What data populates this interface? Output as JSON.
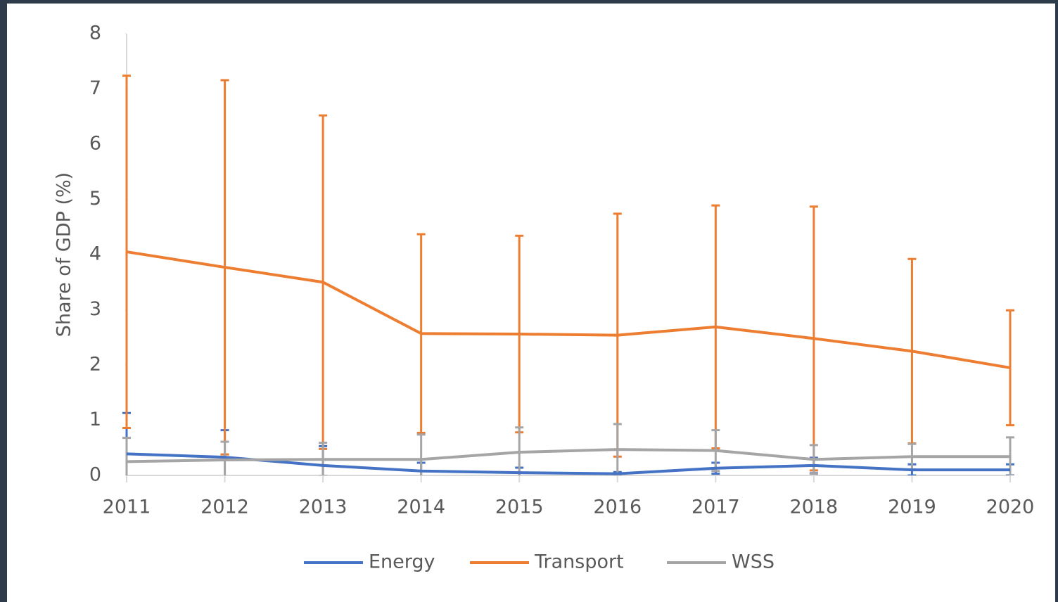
{
  "chart_data": {
    "type": "line",
    "y_label": "Share of GDP (%)",
    "categories": [
      "2011",
      "2012",
      "2013",
      "2014",
      "2015",
      "2016",
      "2017",
      "2018",
      "2019",
      "2020"
    ],
    "series": [
      {
        "name": "Energy",
        "color": "#4472c4",
        "values": [
          0.39,
          0.33,
          0.18,
          0.08,
          0.05,
          0.03,
          0.13,
          0.18,
          0.1,
          0.1
        ],
        "errors": [
          0.74,
          0.49,
          0.35,
          0.15,
          0.09,
          0.03,
          0.1,
          0.14,
          0.1,
          0.1
        ]
      },
      {
        "name": "Transport",
        "color": "#ed7d31",
        "values": [
          4.05,
          3.77,
          3.5,
          2.57,
          2.56,
          2.54,
          2.69,
          2.48,
          2.25,
          1.95
        ],
        "errors": [
          3.19,
          3.39,
          3.02,
          1.8,
          1.78,
          2.2,
          2.2,
          2.39,
          1.67,
          1.04
        ]
      },
      {
        "name": "WSS",
        "color": "#a5a5a5",
        "values": [
          0.25,
          0.28,
          0.29,
          0.29,
          0.42,
          0.47,
          0.45,
          0.29,
          0.34,
          0.34
        ],
        "errors": [
          0.43,
          0.33,
          0.3,
          0.45,
          0.45,
          0.46,
          0.37,
          0.26,
          0.23,
          0.35
        ]
      }
    ],
    "ylim": [
      0,
      8
    ],
    "yticks": [
      0,
      1,
      2,
      3,
      4,
      5,
      6,
      7,
      8
    ],
    "grid": false,
    "legend": "bottom"
  }
}
